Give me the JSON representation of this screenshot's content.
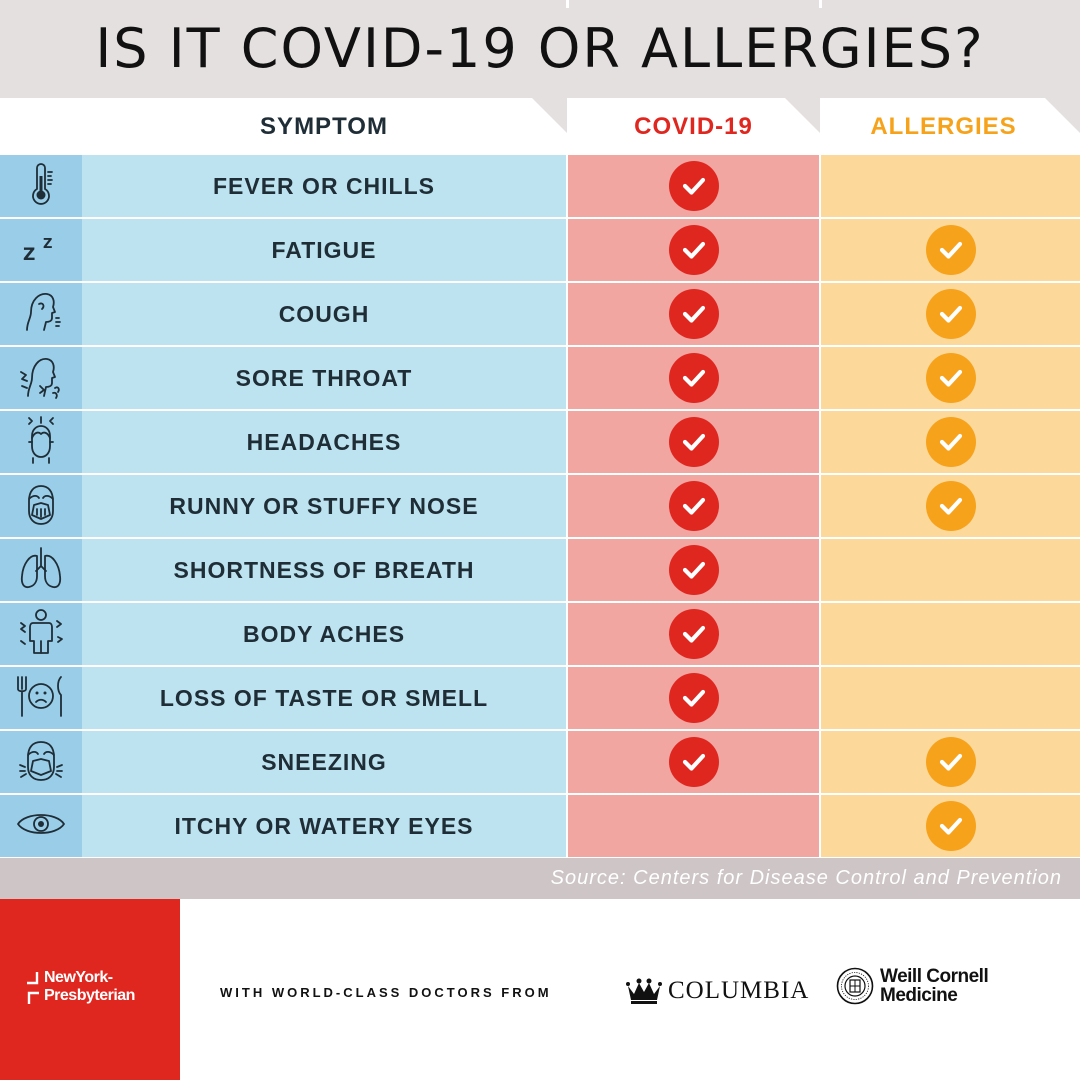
{
  "title": "IS IT COVID-19 OR ALLERGIES?",
  "columns": {
    "symptom": "SYMPTOM",
    "covid": "COVID-19",
    "allergies": "ALLERGIES"
  },
  "colors": {
    "covid_accent": "#e0271f",
    "allergies_accent": "#f7a21b",
    "symptom_bg": "#bde3f0",
    "icon_bg": "#99cde8",
    "covid_bg": "#f2a6a2",
    "allergies_bg": "#fdd89b"
  },
  "rows": [
    {
      "icon": "thermometer-icon",
      "symptom": "FEVER OR CHILLS",
      "covid": true,
      "allergies": false
    },
    {
      "icon": "sleep-zzz-icon",
      "symptom": "FATIGUE",
      "covid": true,
      "allergies": true
    },
    {
      "icon": "cough-icon",
      "symptom": "COUGH",
      "covid": true,
      "allergies": true
    },
    {
      "icon": "sore-throat-icon",
      "symptom": "SORE THROAT",
      "covid": true,
      "allergies": true
    },
    {
      "icon": "headache-icon",
      "symptom": "HEADACHES",
      "covid": true,
      "allergies": true
    },
    {
      "icon": "runny-nose-icon",
      "symptom": "RUNNY OR STUFFY NOSE",
      "covid": true,
      "allergies": true
    },
    {
      "icon": "lungs-icon",
      "symptom": "SHORTNESS OF BREATH",
      "covid": true,
      "allergies": false
    },
    {
      "icon": "body-aches-icon",
      "symptom": "BODY ACHES",
      "covid": true,
      "allergies": false
    },
    {
      "icon": "loss-of-taste-icon",
      "symptom": "LOSS OF TASTE OR SMELL",
      "covid": true,
      "allergies": false
    },
    {
      "icon": "sneezing-icon",
      "symptom": "SNEEZING",
      "covid": true,
      "allergies": true
    },
    {
      "icon": "eye-icon",
      "symptom": "ITCHY OR WATERY EYES",
      "covid": false,
      "allergies": true
    }
  ],
  "source": "Source: Centers for Disease Control and Prevention",
  "footer": {
    "nyp_line1": "NewYork-",
    "nyp_line2": "Presbyterian",
    "tagline": "WITH WORLD-CLASS DOCTORS FROM",
    "columbia": "COLUMBIA",
    "wcm_line1": "Weill Cornell",
    "wcm_line2": "Medicine"
  }
}
